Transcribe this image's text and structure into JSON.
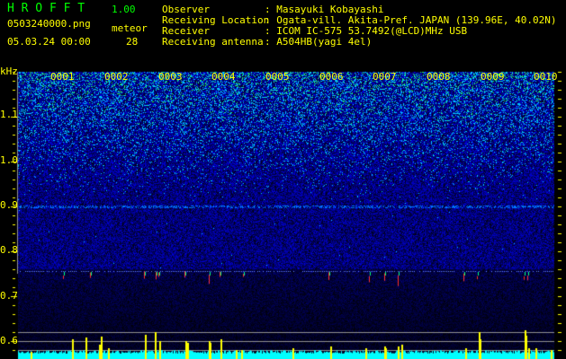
{
  "app": {
    "title": "H R O F F T",
    "version": "1.00"
  },
  "file": {
    "name": "0503240000.png",
    "datetime": "05.03.24 00:00"
  },
  "meteor": {
    "label": "meteor",
    "count": "28"
  },
  "info": [
    {
      "label": "Observer",
      "value": ": Masayuki Kobayashi"
    },
    {
      "label": "Receiving Location",
      "value": ": Ogata-vill. Akita-Pref. JAPAN (139.96E, 40.02N)"
    },
    {
      "label": "Receiver",
      "value": ": ICOM IC-575 53.7492(@LCD)MHz USB"
    },
    {
      "label": "Receiving antenna",
      "value": ": A504HB(yagi 4el)"
    }
  ],
  "spectrogram": {
    "y_unit": "kHz",
    "y_ticks": [
      "1.1",
      "1.0",
      "0.9",
      "0.8",
      "0.7",
      "0.6"
    ],
    "columns": [
      "0001",
      "0002",
      "0003",
      "0004",
      "0005",
      "0006",
      "0007",
      "0008",
      "0009",
      "0010"
    ],
    "colors": {
      "background": "#000020",
      "noise": "#2030ff",
      "signal": "#00ffff",
      "meteor": "#ff3030",
      "bars": "#ffff00",
      "baseline": "#00ffff"
    }
  }
}
